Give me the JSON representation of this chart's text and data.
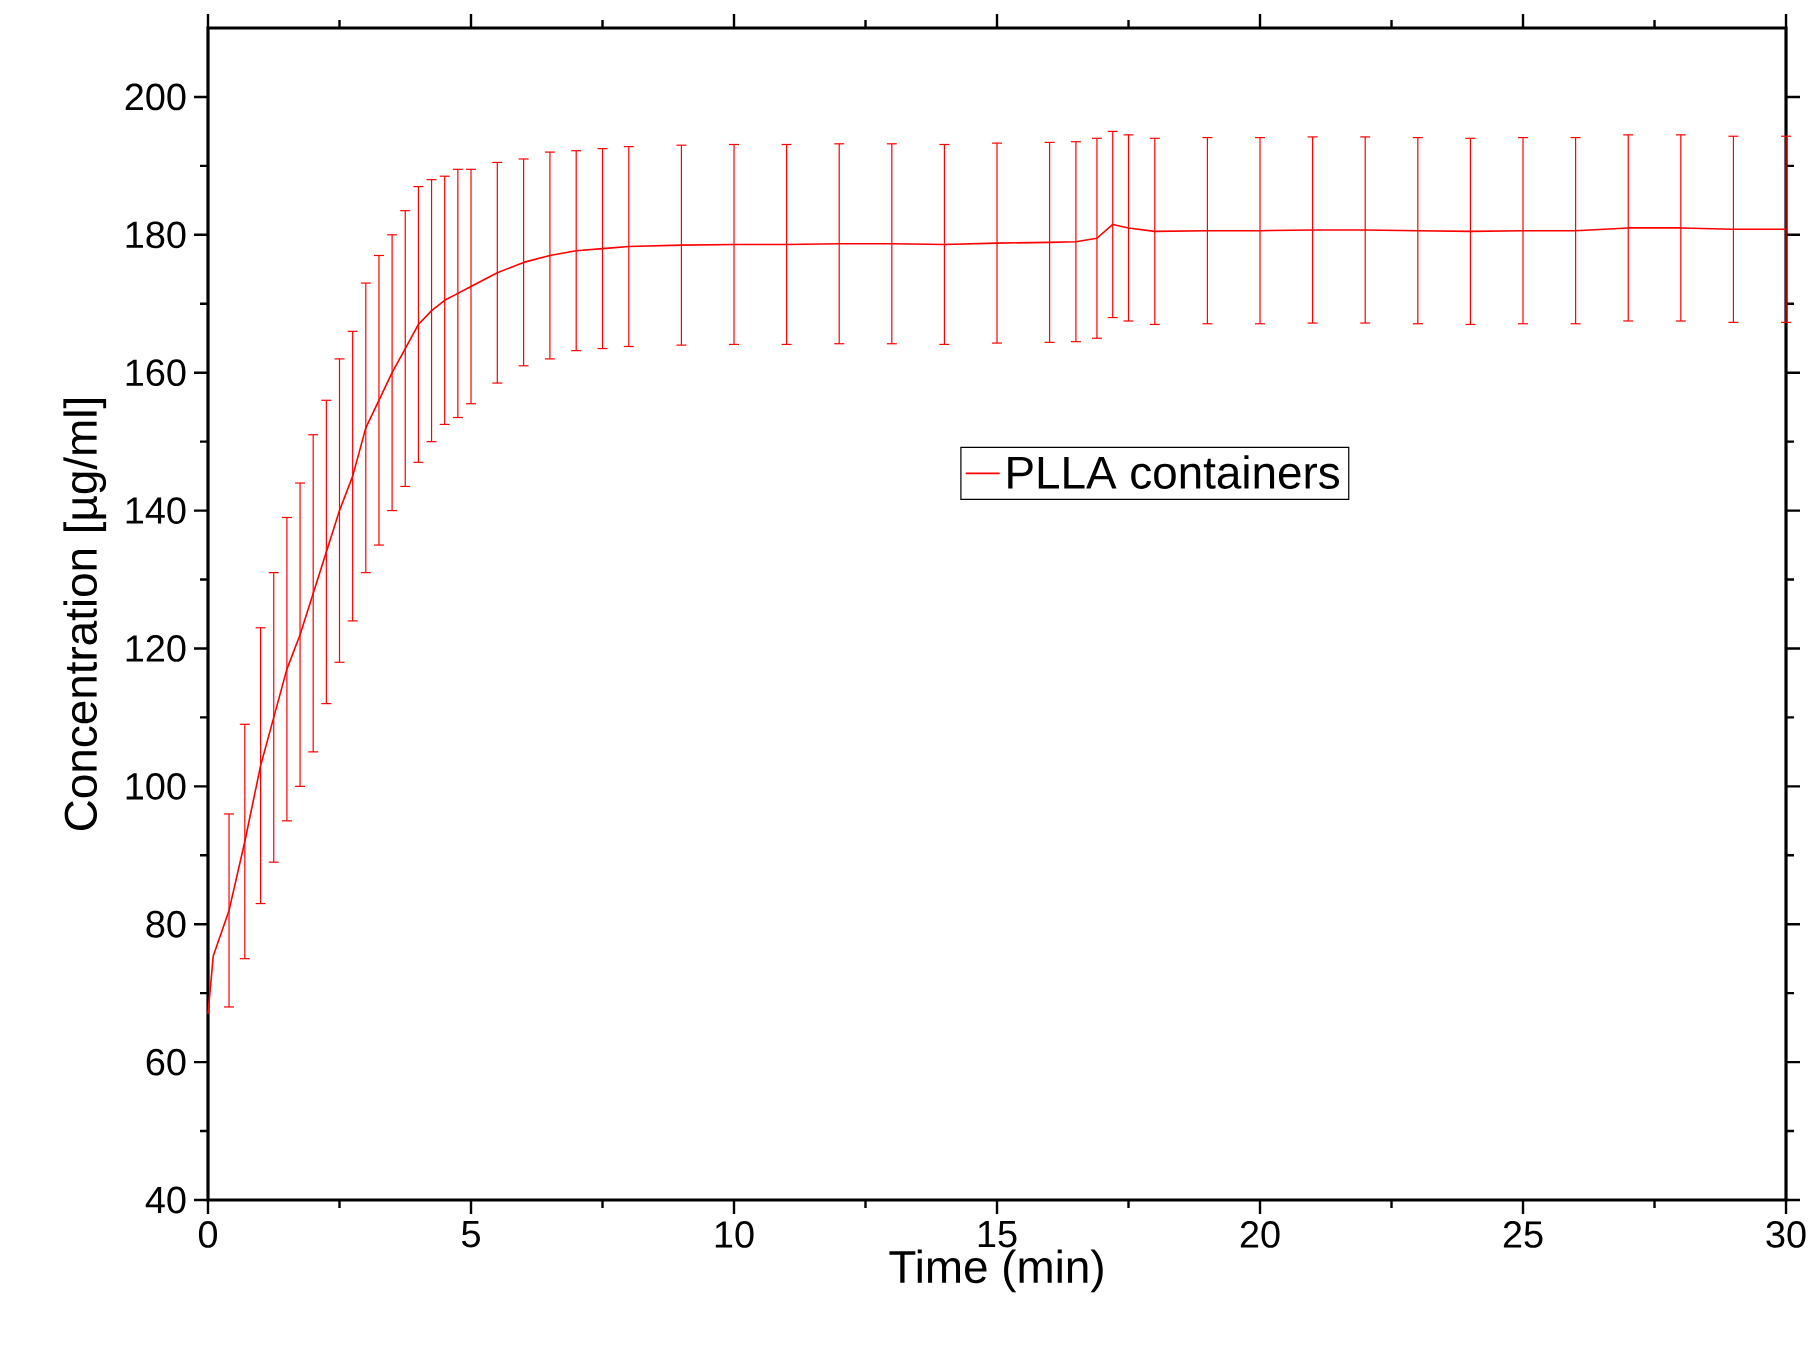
{
  "chart_data": {
    "type": "line",
    "xlabel": "Time (min)",
    "ylabel": "Concentration [µg/ml]",
    "xlim": [
      0,
      30
    ],
    "ylim": [
      40,
      210
    ],
    "xticks": [
      0,
      5,
      10,
      15,
      20,
      25,
      30
    ],
    "yticks": [
      40,
      60,
      80,
      100,
      120,
      140,
      160,
      180,
      200
    ],
    "legend": "right",
    "marker": "none",
    "line_style": "solid",
    "series": [
      {
        "name": "PLLA containers",
        "color": "#ff0000",
        "x": [
          0,
          0.1,
          0.4,
          0.7,
          1.0,
          1.25,
          1.5,
          1.75,
          2.0,
          2.25,
          2.5,
          2.75,
          3.0,
          3.25,
          3.5,
          3.75,
          4.0,
          4.25,
          4.5,
          4.75,
          5.0,
          5.5,
          6,
          6.5,
          7,
          7.5,
          8,
          9,
          10,
          11,
          12,
          13,
          14,
          15,
          16,
          16.5,
          16.9,
          17.2,
          17.5,
          18,
          19,
          20,
          21,
          22,
          23,
          24,
          25,
          26,
          27,
          28,
          29,
          30
        ],
        "values": [
          67,
          75.4,
          82,
          92,
          103,
          110,
          117,
          122,
          128,
          134,
          140,
          145,
          152,
          156,
          160,
          163.5,
          167,
          169,
          170.5,
          171.5,
          172.5,
          174.5,
          176,
          177,
          177.7,
          178,
          178.3,
          178.5,
          178.6,
          178.6,
          178.7,
          178.7,
          178.6,
          178.8,
          178.9,
          179,
          179.5,
          181.5,
          181,
          180.5,
          180.6,
          180.6,
          180.7,
          180.7,
          180.6,
          180.5,
          180.6,
          180.6,
          181,
          181,
          180.8,
          180.8
        ],
        "errors": [
          null,
          null,
          14,
          17,
          20,
          21,
          22,
          22,
          23,
          22,
          22,
          21,
          21,
          21,
          20,
          20,
          20,
          19,
          18,
          18,
          17,
          16,
          15,
          15,
          14.5,
          14.5,
          14.5,
          14.5,
          14.5,
          14.5,
          14.5,
          14.5,
          14.5,
          14.5,
          14.5,
          14.5,
          14.5,
          13.5,
          13.5,
          13.5,
          13.5,
          13.5,
          13.5,
          13.5,
          13.5,
          13.5,
          13.5,
          13.5,
          13.5,
          13.5,
          13.5,
          13.5
        ]
      }
    ]
  }
}
